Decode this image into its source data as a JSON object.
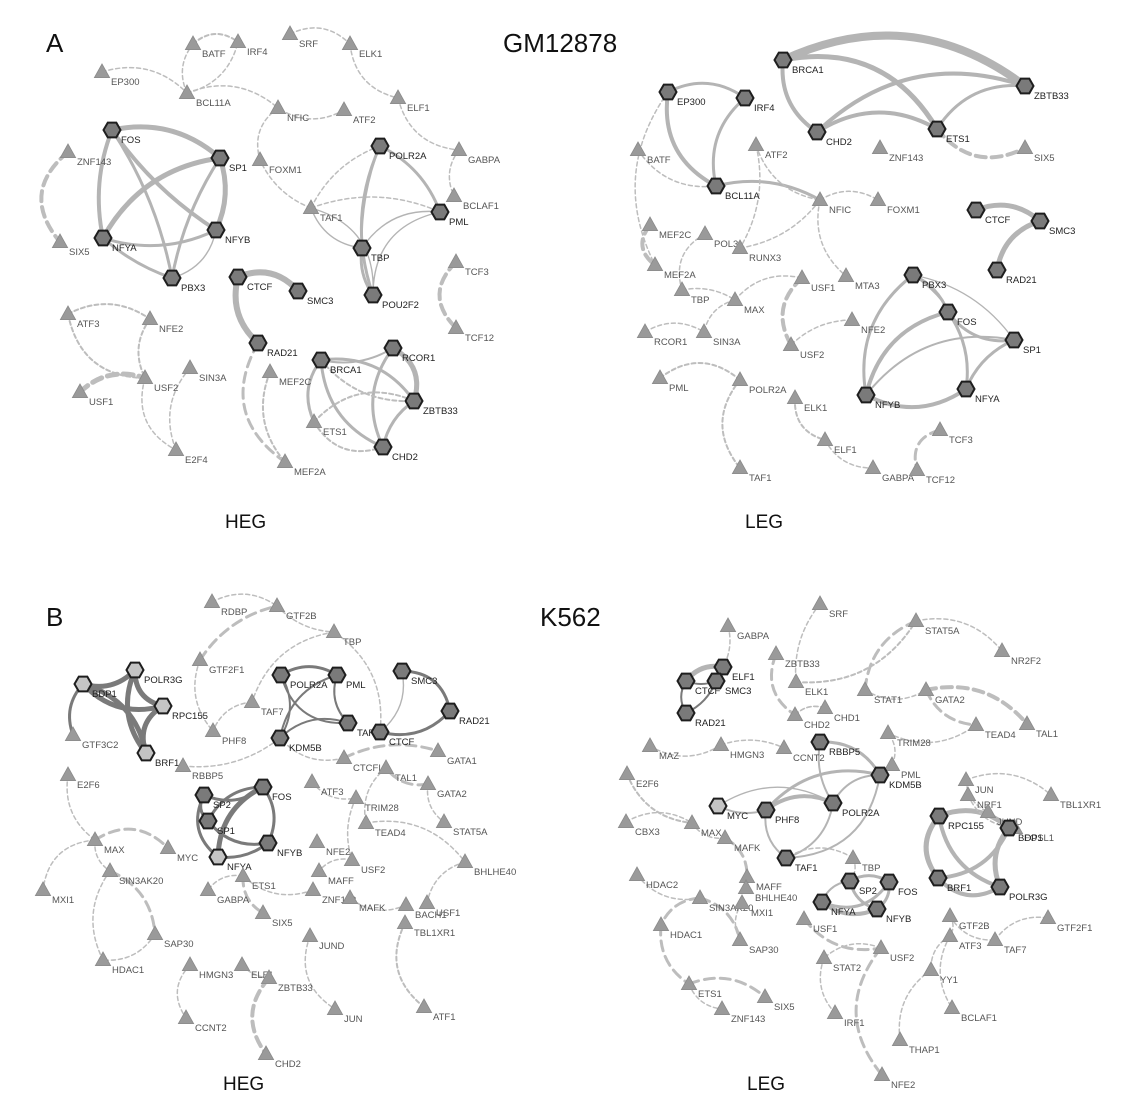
{
  "figure": {
    "labels": {
      "A": "A",
      "B": "B",
      "GM12878": "GM12878",
      "K562": "K562",
      "HEG": "HEG",
      "LEG": "LEG"
    },
    "colors": {
      "hex_dark": "#7a7a7a",
      "hex_light": "#c4c4c4",
      "triangle": "#9a9a9a",
      "edge_solid": "#b4b4b4",
      "edge_solid_dark": "#7a7a7a",
      "edge_dashed": "#bdbdbd"
    },
    "networks": [
      {
        "id": "gm-heg",
        "nodes": [
          {
            "id": "BATF",
            "t": "tri"
          },
          {
            "id": "IRF4",
            "t": "tri"
          },
          {
            "id": "SRF",
            "t": "tri"
          },
          {
            "id": "ELK1",
            "t": "tri"
          },
          {
            "id": "EP300",
            "t": "tri"
          },
          {
            "id": "BCL11A",
            "t": "tri"
          },
          {
            "id": "NFIC",
            "t": "tri"
          },
          {
            "id": "ATF2",
            "t": "tri"
          },
          {
            "id": "ELF1",
            "t": "tri"
          },
          {
            "id": "ZNF143",
            "t": "tri"
          },
          {
            "id": "FOS",
            "t": "hex"
          },
          {
            "id": "SP1",
            "t": "hex"
          },
          {
            "id": "POLR2A",
            "t": "hex"
          },
          {
            "id": "GABPA",
            "t": "tri"
          },
          {
            "id": "FOXM1",
            "t": "tri"
          },
          {
            "id": "TAF1",
            "t": "tri"
          },
          {
            "id": "PML",
            "t": "hex"
          },
          {
            "id": "BCLAF1",
            "t": "tri"
          },
          {
            "id": "NFYA",
            "t": "hex"
          },
          {
            "id": "NFYB",
            "t": "hex"
          },
          {
            "id": "SIX5",
            "t": "tri"
          },
          {
            "id": "TBP",
            "t": "hex"
          },
          {
            "id": "PBX3",
            "t": "hex"
          },
          {
            "id": "POU2F2",
            "t": "hex"
          },
          {
            "id": "TCF3",
            "t": "tri"
          },
          {
            "id": "CTCF",
            "t": "hex"
          },
          {
            "id": "SMC3",
            "t": "hex"
          },
          {
            "id": "ATF3",
            "t": "tri"
          },
          {
            "id": "NFE2",
            "t": "tri"
          },
          {
            "id": "TCF12",
            "t": "tri"
          },
          {
            "id": "RAD21",
            "t": "hex"
          },
          {
            "id": "RCOR1",
            "t": "hex"
          },
          {
            "id": "BRCA1",
            "t": "hex"
          },
          {
            "id": "MEF2C",
            "t": "tri"
          },
          {
            "id": "USF1",
            "t": "tri"
          },
          {
            "id": "USF2",
            "t": "tri"
          },
          {
            "id": "SIN3A",
            "t": "tri"
          },
          {
            "id": "ZBTB33",
            "t": "hex"
          },
          {
            "id": "ETS1",
            "t": "tri"
          },
          {
            "id": "CHD2",
            "t": "hex"
          },
          {
            "id": "E2F4",
            "t": "tri"
          },
          {
            "id": "MEF2A",
            "t": "tri"
          }
        ]
      },
      {
        "id": "gm-leg",
        "nodes": [
          {
            "id": "BRCA1",
            "t": "hex"
          },
          {
            "id": "ZBTB33",
            "t": "hex"
          },
          {
            "id": "EP300",
            "t": "hex"
          },
          {
            "id": "IRF4",
            "t": "hex"
          },
          {
            "id": "CHD2",
            "t": "hex"
          },
          {
            "id": "ETS1",
            "t": "hex"
          },
          {
            "id": "ATF2",
            "t": "tri"
          },
          {
            "id": "ZNF143",
            "t": "tri"
          },
          {
            "id": "SIX5",
            "t": "tri"
          },
          {
            "id": "BATF",
            "t": "tri"
          },
          {
            "id": "BCL11A",
            "t": "hex"
          },
          {
            "id": "NFIC",
            "t": "tri"
          },
          {
            "id": "FOXM1",
            "t": "tri"
          },
          {
            "id": "MEF2C",
            "t": "tri"
          },
          {
            "id": "POL3",
            "t": "tri"
          },
          {
            "id": "RUNX3",
            "t": "tri"
          },
          {
            "id": "CTCF",
            "t": "hex"
          },
          {
            "id": "SMC3",
            "t": "hex"
          },
          {
            "id": "RAD21",
            "t": "hex"
          },
          {
            "id": "MEF2A",
            "t": "tri"
          },
          {
            "id": "MTA3",
            "t": "tri"
          },
          {
            "id": "USF1",
            "t": "tri"
          },
          {
            "id": "PBX3",
            "t": "hex"
          },
          {
            "id": "FOS",
            "t": "hex"
          },
          {
            "id": "TBP",
            "t": "tri"
          },
          {
            "id": "MAX",
            "t": "tri"
          },
          {
            "id": "SP1",
            "t": "hex"
          },
          {
            "id": "NFE2",
            "t": "tri"
          },
          {
            "id": "RCOR1",
            "t": "tri"
          },
          {
            "id": "SIN3A",
            "t": "tri"
          },
          {
            "id": "USF2",
            "t": "tri"
          },
          {
            "id": "NFYB",
            "t": "hex"
          },
          {
            "id": "NFYA",
            "t": "hex"
          },
          {
            "id": "PML",
            "t": "tri"
          },
          {
            "id": "POLR2A",
            "t": "tri"
          },
          {
            "id": "ELK1",
            "t": "tri"
          },
          {
            "id": "TCF3",
            "t": "tri"
          },
          {
            "id": "ELF1",
            "t": "tri"
          },
          {
            "id": "TAF1",
            "t": "tri"
          },
          {
            "id": "GABPA",
            "t": "tri"
          },
          {
            "id": "TCF12",
            "t": "tri"
          }
        ]
      },
      {
        "id": "k-heg",
        "nodes": [
          {
            "id": "RDBP",
            "t": "tri"
          },
          {
            "id": "GTF2B",
            "t": "tri"
          },
          {
            "id": "TBP",
            "t": "tri"
          },
          {
            "id": "POLR3G",
            "t": "hexl"
          },
          {
            "id": "GTF2F1",
            "t": "tri"
          },
          {
            "id": "PML",
            "t": "hex"
          },
          {
            "id": "POLR2A",
            "t": "hex"
          },
          {
            "id": "SMC3",
            "t": "hex"
          },
          {
            "id": "BDP1",
            "t": "hexl"
          },
          {
            "id": "TAF7",
            "t": "tri"
          },
          {
            "id": "RPC155",
            "t": "hexl"
          },
          {
            "id": "RAD21",
            "t": "hex"
          },
          {
            "id": "TAF1",
            "t": "hex"
          },
          {
            "id": "CTCF",
            "t": "hex"
          },
          {
            "id": "PHF8",
            "t": "tri"
          },
          {
            "id": "GTF3C2",
            "t": "tri"
          },
          {
            "id": "KDM5B",
            "t": "hex"
          },
          {
            "id": "GATA1",
            "t": "tri"
          },
          {
            "id": "BRF1",
            "t": "hexl"
          },
          {
            "id": "CTCFL",
            "t": "tri"
          },
          {
            "id": "RBBP5",
            "t": "tri"
          },
          {
            "id": "TAL1",
            "t": "tri"
          },
          {
            "id": "E2F6",
            "t": "tri"
          },
          {
            "id": "FOS",
            "t": "hex"
          },
          {
            "id": "ATF3",
            "t": "tri"
          },
          {
            "id": "SP2",
            "t": "hex"
          },
          {
            "id": "GATA2",
            "t": "tri"
          },
          {
            "id": "TRIM28",
            "t": "tri"
          },
          {
            "id": "SP1",
            "t": "hex"
          },
          {
            "id": "MAX",
            "t": "tri"
          },
          {
            "id": "MYC",
            "t": "tri"
          },
          {
            "id": "NFYB",
            "t": "hex"
          },
          {
            "id": "NFE2",
            "t": "tri"
          },
          {
            "id": "TEAD4",
            "t": "tri"
          },
          {
            "id": "STAT5A",
            "t": "tri"
          },
          {
            "id": "NFYA",
            "t": "hexl"
          },
          {
            "id": "BHLHE40",
            "t": "tri"
          },
          {
            "id": "MAFF",
            "t": "tri"
          },
          {
            "id": "USF2",
            "t": "tri"
          },
          {
            "id": "MXI1",
            "t": "tri"
          },
          {
            "id": "SIN3AK20",
            "t": "tri"
          },
          {
            "id": "ETS1",
            "t": "tri"
          },
          {
            "id": "USF1",
            "t": "tri"
          },
          {
            "id": "ZNF143",
            "t": "tri"
          },
          {
            "id": "MAFK",
            "t": "tri"
          },
          {
            "id": "BACH1",
            "t": "tri"
          },
          {
            "id": "GABPA",
            "t": "tri"
          },
          {
            "id": "TBL1XR1",
            "t": "tri"
          },
          {
            "id": "SIX5",
            "t": "tri"
          },
          {
            "id": "SAP30",
            "t": "tri"
          },
          {
            "id": "JUND",
            "t": "tri"
          },
          {
            "id": "HDAC1",
            "t": "tri"
          },
          {
            "id": "HMGN3",
            "t": "tri"
          },
          {
            "id": "ELF1",
            "t": "tri"
          },
          {
            "id": "ZBTB33",
            "t": "tri"
          },
          {
            "id": "JUN",
            "t": "tri"
          },
          {
            "id": "ATF1",
            "t": "tri"
          },
          {
            "id": "CCNT2",
            "t": "tri"
          },
          {
            "id": "CHD2",
            "t": "tri"
          }
        ]
      },
      {
        "id": "k-leg",
        "nodes": [
          {
            "id": "SRF",
            "t": "tri"
          },
          {
            "id": "GABPA",
            "t": "tri"
          },
          {
            "id": "STAT5A",
            "t": "tri"
          },
          {
            "id": "ZBTB33",
            "t": "tri"
          },
          {
            "id": "NR2F2",
            "t": "tri"
          },
          {
            "id": "ELF1",
            "t": "hex"
          },
          {
            "id": "CTCF",
            "t": "hex"
          },
          {
            "id": "SMC3",
            "t": "hex"
          },
          {
            "id": "ELK1",
            "t": "tri"
          },
          {
            "id": "STAT1",
            "t": "tri"
          },
          {
            "id": "GATA2",
            "t": "tri"
          },
          {
            "id": "RAD21",
            "t": "hex"
          },
          {
            "id": "CHD2",
            "t": "tri"
          },
          {
            "id": "CHD1",
            "t": "tri"
          },
          {
            "id": "TAL1",
            "t": "tri"
          },
          {
            "id": "TRIM28",
            "t": "tri"
          },
          {
            "id": "TEAD4",
            "t": "tri"
          },
          {
            "id": "MAZ",
            "t": "tri"
          },
          {
            "id": "HMGN3",
            "t": "tri"
          },
          {
            "id": "CCNT2",
            "t": "tri"
          },
          {
            "id": "RBBP5",
            "t": "hex"
          },
          {
            "id": "PML",
            "t": "tri"
          },
          {
            "id": "JUN",
            "t": "tri"
          },
          {
            "id": "KDM5B",
            "t": "hex"
          },
          {
            "id": "NRF1",
            "t": "tri"
          },
          {
            "id": "TBL1XR1",
            "t": "tri"
          },
          {
            "id": "E2F6",
            "t": "tri"
          },
          {
            "id": "JUND",
            "t": "tri"
          },
          {
            "id": "MYC",
            "t": "hexl"
          },
          {
            "id": "POLR2A",
            "t": "hex"
          },
          {
            "id": "CBX3",
            "t": "tri"
          },
          {
            "id": "FOSL1",
            "t": "tri"
          },
          {
            "id": "MAX",
            "t": "tri"
          },
          {
            "id": "PHF8",
            "t": "hex"
          },
          {
            "id": "MAFK",
            "t": "tri"
          },
          {
            "id": "RPC155",
            "t": "hex"
          },
          {
            "id": "BDP1",
            "t": "hex"
          },
          {
            "id": "TBP",
            "t": "tri"
          },
          {
            "id": "TAF1",
            "t": "hex"
          },
          {
            "id": "HDAC2",
            "t": "tri"
          },
          {
            "id": "MAFF",
            "t": "tri"
          },
          {
            "id": "SP2",
            "t": "hex"
          },
          {
            "id": "BHLHE40",
            "t": "tri"
          },
          {
            "id": "FOS",
            "t": "hex"
          },
          {
            "id": "BRF1",
            "t": "hex"
          },
          {
            "id": "POLR3G",
            "t": "hex"
          },
          {
            "id": "SIN3AK20",
            "t": "tri"
          },
          {
            "id": "NFYA",
            "t": "hex"
          },
          {
            "id": "MXI1",
            "t": "tri"
          },
          {
            "id": "USF1",
            "t": "tri"
          },
          {
            "id": "NFYB",
            "t": "hex"
          },
          {
            "id": "GTF2B",
            "t": "tri"
          },
          {
            "id": "GTF2F1",
            "t": "tri"
          },
          {
            "id": "HDAC1",
            "t": "tri"
          },
          {
            "id": "SAP30",
            "t": "tri"
          },
          {
            "id": "ATF3",
            "t": "tri"
          },
          {
            "id": "TAF7",
            "t": "tri"
          },
          {
            "id": "USF2",
            "t": "tri"
          },
          {
            "id": "STAT2",
            "t": "tri"
          },
          {
            "id": "YY1",
            "t": "tri"
          },
          {
            "id": "ETS1",
            "t": "tri"
          },
          {
            "id": "SIX5",
            "t": "tri"
          },
          {
            "id": "BCLAF1",
            "t": "tri"
          },
          {
            "id": "ZNF143",
            "t": "tri"
          },
          {
            "id": "IRF1",
            "t": "tri"
          },
          {
            "id": "THAP1",
            "t": "tri"
          },
          {
            "id": "NFE2",
            "t": "tri"
          }
        ]
      }
    ]
  }
}
